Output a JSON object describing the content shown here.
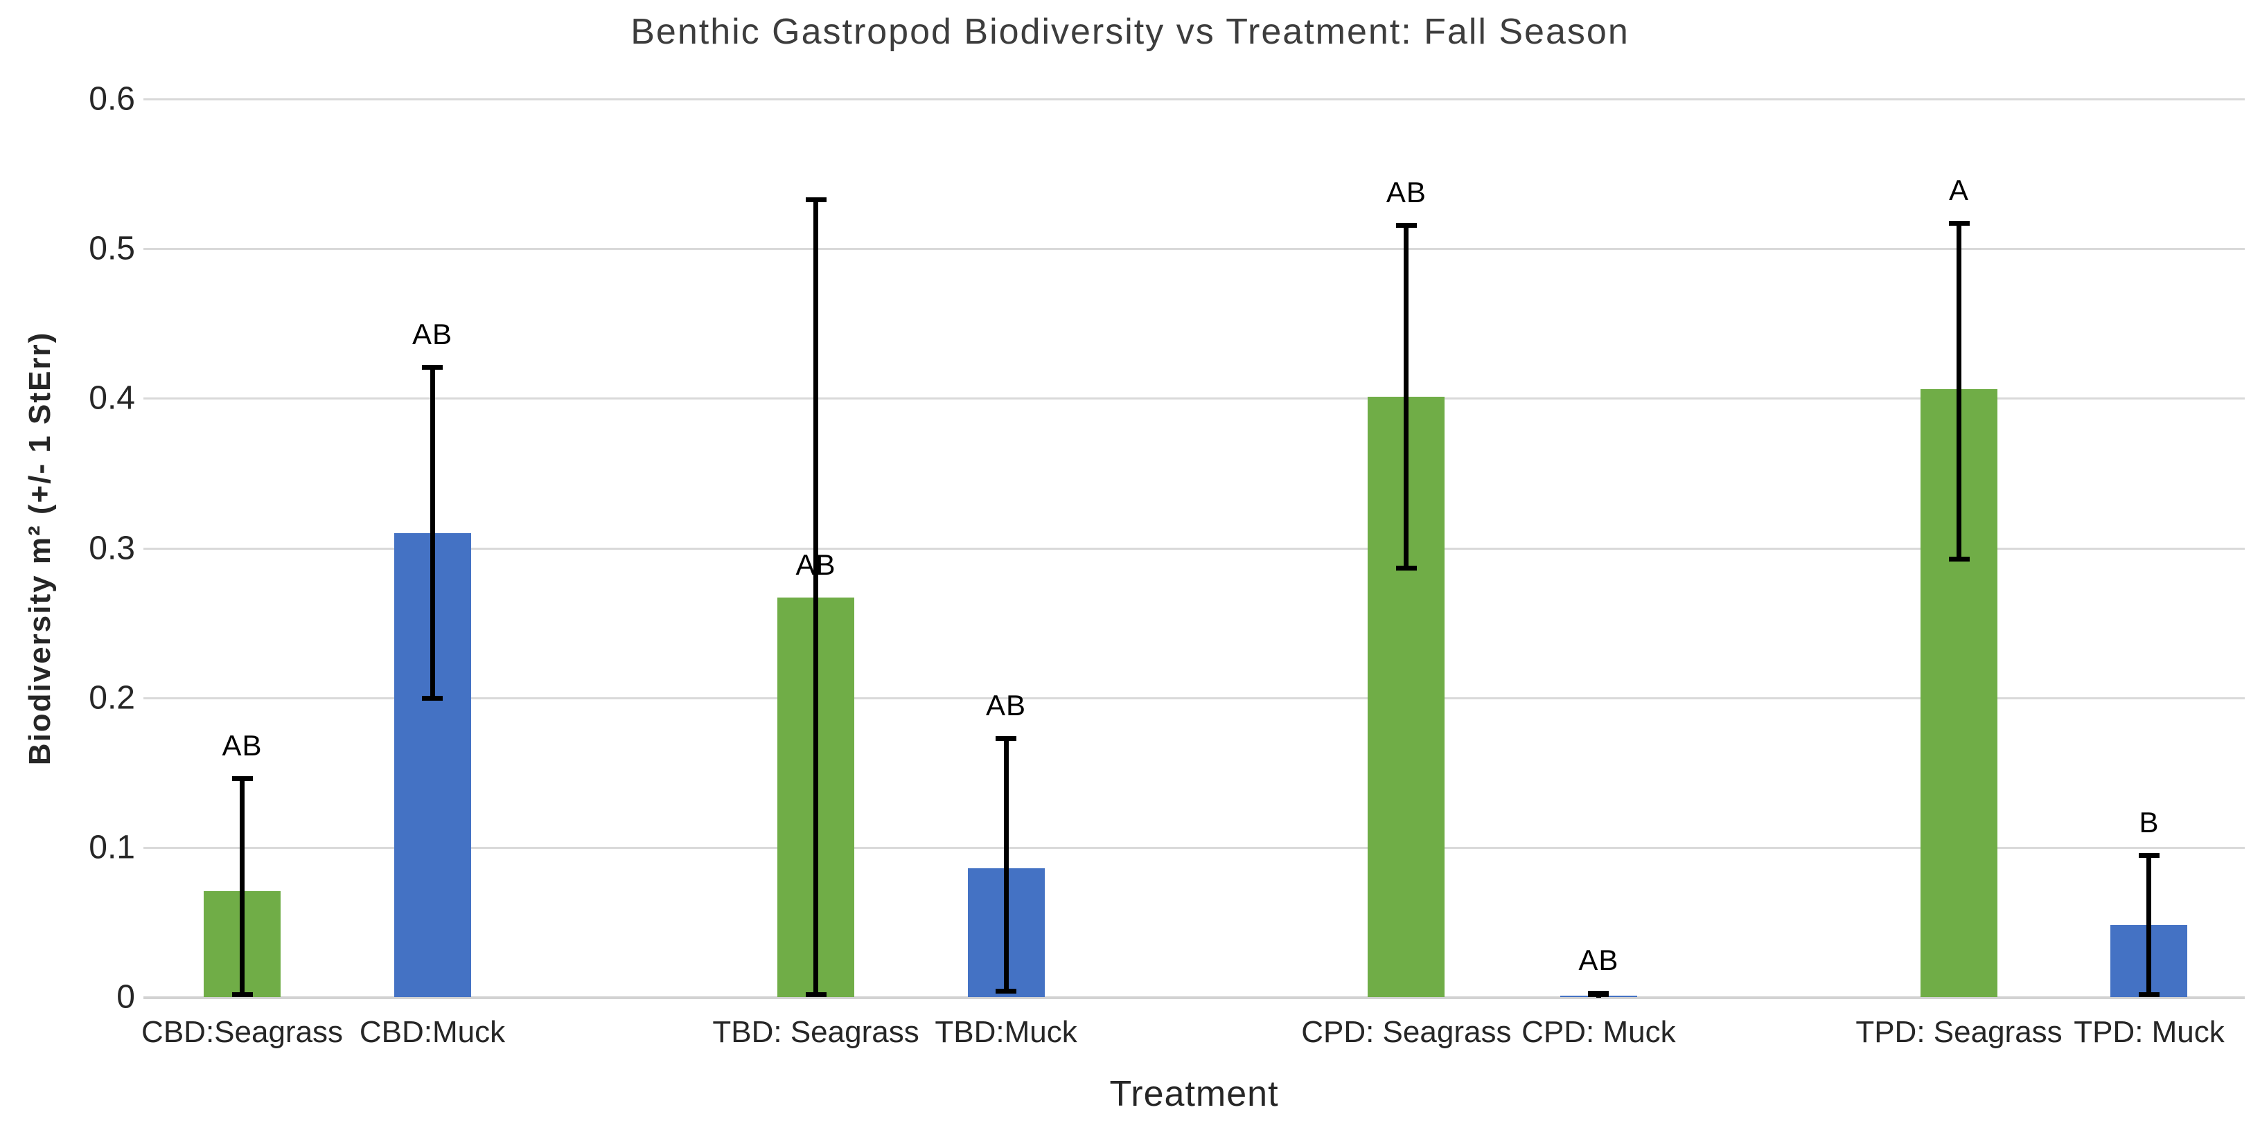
{
  "chart_data": {
    "type": "bar",
    "title": "Benthic Gastropod Biodiversity vs Treatment: Fall Season",
    "xlabel": "Treatment",
    "ylabel": "Biodiversity m² (+/- 1 StErr)",
    "ylim": [
      0,
      0.6
    ],
    "yticks": [
      "0",
      "0.1",
      "0.2",
      "0.3",
      "0.4",
      "0.5",
      "0.6"
    ],
    "grid": true,
    "legend_position": "none",
    "error_bars": "+/- 1 standard error, black caps",
    "series": [
      {
        "name": "Seagrass",
        "color": "#70AD47"
      },
      {
        "name": "Muck",
        "color": "#4472C4"
      }
    ],
    "bars": [
      {
        "category": "CBD:Seagrass",
        "series": "Seagrass",
        "value": 0.071,
        "err_low": 0.002,
        "err_high": 0.146,
        "letter": "AB",
        "letter_anchor": "error"
      },
      {
        "category": "CBD:Muck",
        "series": "Muck",
        "value": 0.31,
        "err_low": 0.2,
        "err_high": 0.421,
        "letter": "AB",
        "letter_anchor": "error"
      },
      {
        "category": "TBD: Seagrass",
        "series": "Seagrass",
        "value": 0.267,
        "err_low": 0.002,
        "err_high": 0.533,
        "letter": "AB",
        "letter_anchor": "bar"
      },
      {
        "category": "TBD:Muck",
        "series": "Muck",
        "value": 0.086,
        "err_low": 0.004,
        "err_high": 0.173,
        "letter": "AB",
        "letter_anchor": "error"
      },
      {
        "category": "CPD: Seagrass",
        "series": "Seagrass",
        "value": 0.401,
        "err_low": 0.287,
        "err_high": 0.516,
        "letter": "AB",
        "letter_anchor": "error"
      },
      {
        "category": "CPD: Muck",
        "series": "Muck",
        "value": 0.001,
        "err_low": 0.002,
        "err_high": 0.003,
        "letter": "AB",
        "letter_anchor": "error"
      },
      {
        "category": "TPD: Seagrass",
        "series": "Seagrass",
        "value": 0.406,
        "err_low": 0.293,
        "err_high": 0.517,
        "letter": "A",
        "letter_anchor": "error"
      },
      {
        "category": "TPD: Muck",
        "series": "Muck",
        "value": 0.048,
        "err_low": 0.002,
        "err_high": 0.095,
        "letter": "B",
        "letter_anchor": "error"
      }
    ]
  }
}
